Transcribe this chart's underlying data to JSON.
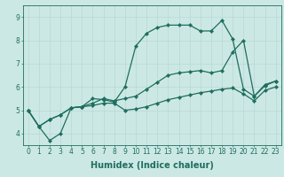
{
  "xlabel": "Humidex (Indice chaleur)",
  "ylabel": "",
  "background_color": "#cce8e5",
  "grid_color": "#b8d8d5",
  "line_color": "#1e6e5e",
  "marker": "D",
  "markersize": 2.2,
  "linewidth": 0.9,
  "xlim": [
    -0.5,
    23.5
  ],
  "ylim": [
    3.5,
    9.5
  ],
  "xticks": [
    0,
    1,
    2,
    3,
    4,
    5,
    6,
    7,
    8,
    9,
    10,
    11,
    12,
    13,
    14,
    15,
    16,
    17,
    18,
    19,
    20,
    21,
    22,
    23
  ],
  "yticks": [
    4,
    5,
    6,
    7,
    8,
    9
  ],
  "series1_x": [
    0,
    1,
    2,
    3,
    4,
    5,
    6,
    7,
    8,
    9,
    10,
    11,
    12,
    13,
    14,
    15,
    16,
    17,
    18,
    19,
    20,
    21,
    22,
    23
  ],
  "series1_y": [
    5.0,
    4.3,
    4.6,
    4.8,
    5.1,
    5.15,
    5.2,
    5.3,
    5.3,
    5.0,
    5.05,
    5.15,
    5.3,
    5.45,
    5.55,
    5.65,
    5.75,
    5.82,
    5.9,
    5.95,
    5.7,
    5.4,
    5.85,
    6.0
  ],
  "series2_x": [
    0,
    1,
    2,
    3,
    4,
    5,
    6,
    7,
    8,
    9,
    10,
    11,
    12,
    13,
    14,
    15,
    16,
    17,
    18,
    19,
    20,
    21,
    22,
    23
  ],
  "series2_y": [
    5.0,
    4.3,
    4.6,
    4.8,
    5.1,
    5.15,
    5.3,
    5.5,
    5.4,
    5.5,
    5.6,
    5.9,
    6.2,
    6.5,
    6.6,
    6.65,
    6.7,
    6.6,
    6.7,
    7.5,
    8.0,
    5.6,
    6.05,
    6.25
  ],
  "series3_x": [
    0,
    1,
    2,
    3,
    4,
    5,
    6,
    7,
    8,
    9,
    10,
    11,
    12,
    13,
    14,
    15,
    16,
    17,
    18,
    19,
    20,
    21,
    22,
    23
  ],
  "series3_y": [
    5.0,
    4.3,
    3.7,
    4.0,
    5.1,
    5.15,
    5.5,
    5.45,
    5.35,
    6.0,
    7.75,
    8.3,
    8.55,
    8.65,
    8.65,
    8.65,
    8.4,
    8.4,
    8.85,
    8.05,
    5.9,
    5.6,
    6.1,
    6.25
  ],
  "font_size_label": 7,
  "font_size_tick": 5.5
}
